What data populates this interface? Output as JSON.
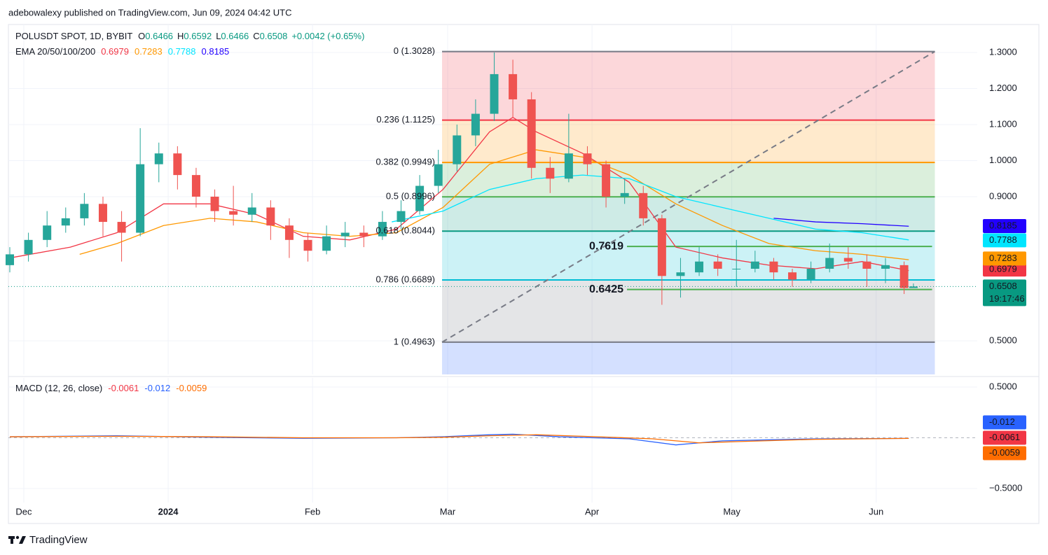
{
  "chart_data": {
    "type": "candlestick",
    "attribution": "adebowalexy published on TradingView.com, Jun 09, 2024 04:42 UTC",
    "symbol": "POLUSDT SPOT, 1D, BYBIT",
    "ohlc_letters": [
      "O",
      "H",
      "L",
      "C"
    ],
    "change": "+0.0042 (+0.65%)",
    "up_color": "#26a69a",
    "down_color": "#ef5350",
    "xlim": [
      -3.3,
      204.7
    ],
    "xticks": [
      {
        "value": 0,
        "label": "Dec"
      },
      {
        "value": 31,
        "label": "2024"
      },
      {
        "value": 62,
        "label": "Feb"
      },
      {
        "value": 91,
        "label": "Mar"
      },
      {
        "value": 122,
        "label": "Apr"
      },
      {
        "value": 152,
        "label": "May"
      },
      {
        "value": 183,
        "label": "Jun"
      }
    ],
    "ylim": [
      0.4068,
      1.3777
    ],
    "yticks": [
      {
        "value": 0.5,
        "label": "0.5000"
      },
      {
        "value": 0.9,
        "label": "0.9000"
      },
      {
        "value": 1.0,
        "label": "1.0000"
      },
      {
        "value": 1.1,
        "label": "1.1000"
      },
      {
        "value": 1.2,
        "label": "1.2000"
      },
      {
        "value": 1.3,
        "label": "1.3000"
      }
    ],
    "grid": true,
    "candles": {
      "x": [
        -3,
        1,
        5,
        9,
        13,
        17,
        21,
        25,
        29,
        33,
        37,
        41,
        45,
        49,
        53,
        57,
        61,
        65,
        69,
        73,
        77,
        81,
        85,
        89,
        93,
        97,
        101,
        105,
        109,
        113,
        117,
        121,
        125,
        129,
        133,
        137,
        141,
        145,
        149,
        153,
        157,
        161,
        165,
        169,
        173,
        177,
        181,
        185,
        189,
        191
      ],
      "open": [
        0.71,
        0.74,
        0.78,
        0.82,
        0.84,
        0.88,
        0.83,
        0.8,
        0.99,
        1.02,
        0.96,
        0.9,
        0.86,
        0.85,
        0.87,
        0.82,
        0.78,
        0.75,
        0.79,
        0.8,
        0.79,
        0.83,
        0.86,
        0.93,
        0.99,
        1.07,
        1.13,
        1.24,
        1.17,
        0.98,
        0.95,
        1.02,
        0.99,
        0.9,
        0.91,
        0.84,
        0.68,
        0.69,
        0.72,
        0.7,
        0.7,
        0.72,
        0.69,
        0.67,
        0.7,
        0.73,
        0.72,
        0.7,
        0.71,
        0.6466
      ],
      "high": [
        0.76,
        0.8,
        0.86,
        0.87,
        0.91,
        0.9,
        0.86,
        1.09,
        1.05,
        1.04,
        0.98,
        0.92,
        0.93,
        0.91,
        0.89,
        0.84,
        0.8,
        0.82,
        0.83,
        0.82,
        0.86,
        0.89,
        0.96,
        1.03,
        1.1,
        1.17,
        1.3,
        1.28,
        1.19,
        1.01,
        1.13,
        1.04,
        1.0,
        0.95,
        0.93,
        0.85,
        0.73,
        0.76,
        0.74,
        0.78,
        0.75,
        0.73,
        0.7,
        0.72,
        0.77,
        0.76,
        0.74,
        0.73,
        0.72,
        0.6592
      ],
      "low": [
        0.69,
        0.72,
        0.76,
        0.8,
        0.82,
        0.79,
        0.72,
        0.79,
        0.94,
        0.92,
        0.87,
        0.83,
        0.82,
        0.83,
        0.78,
        0.73,
        0.72,
        0.74,
        0.76,
        0.76,
        0.78,
        0.81,
        0.85,
        0.91,
        0.97,
        1.04,
        1.11,
        1.12,
        0.95,
        0.91,
        0.94,
        0.96,
        0.87,
        0.88,
        0.82,
        0.6,
        0.62,
        0.68,
        0.68,
        0.65,
        0.69,
        0.67,
        0.65,
        0.66,
        0.69,
        0.7,
        0.65,
        0.66,
        0.63,
        0.6466
      ],
      "close": [
        0.74,
        0.78,
        0.82,
        0.84,
        0.88,
        0.83,
        0.8,
        0.99,
        1.02,
        0.96,
        0.9,
        0.86,
        0.85,
        0.87,
        0.82,
        0.78,
        0.75,
        0.79,
        0.8,
        0.79,
        0.83,
        0.86,
        0.93,
        0.99,
        1.07,
        1.13,
        1.24,
        1.17,
        0.98,
        0.95,
        1.02,
        0.99,
        0.9,
        0.91,
        0.84,
        0.68,
        0.69,
        0.72,
        0.7,
        0.7,
        0.72,
        0.69,
        0.67,
        0.7,
        0.73,
        0.72,
        0.7,
        0.71,
        0.6466,
        0.6508
      ]
    },
    "countdown": "19:17:46",
    "last_color": "#089981",
    "ema_legend": {
      "label": "EMA 20/50/100/200",
      "values": [
        0.6979,
        0.7283,
        0.7788,
        0.8185
      ],
      "colors": [
        "#f23645",
        "#ff9800",
        "#00e5ff",
        "#2200ff"
      ]
    },
    "ema_series": [
      {
        "color": "#f23645",
        "x": [
          -3,
          10,
          20,
          30,
          40,
          50,
          60,
          70,
          80,
          90,
          100,
          105,
          110,
          120,
          130,
          140,
          150,
          160,
          170,
          180,
          190
        ],
        "values": [
          0.73,
          0.76,
          0.8,
          0.88,
          0.88,
          0.85,
          0.79,
          0.78,
          0.81,
          0.92,
          1.08,
          1.12,
          1.08,
          1.02,
          0.94,
          0.76,
          0.73,
          0.71,
          0.7,
          0.72,
          0.695
        ]
      },
      {
        "color": "#ff9800",
        "x": [
          12,
          20,
          30,
          40,
          50,
          60,
          70,
          80,
          90,
          100,
          110,
          120,
          130,
          140,
          150,
          160,
          170,
          180,
          190
        ],
        "values": [
          0.74,
          0.77,
          0.82,
          0.84,
          0.83,
          0.8,
          0.79,
          0.8,
          0.87,
          0.99,
          1.03,
          1.01,
          0.96,
          0.88,
          0.82,
          0.77,
          0.75,
          0.74,
          0.725
        ]
      },
      {
        "color": "#00e5ff",
        "x": [
          79,
          90,
          100,
          110,
          120,
          130,
          140,
          150,
          160,
          170,
          180,
          190
        ],
        "values": [
          0.83,
          0.86,
          0.92,
          0.95,
          0.96,
          0.95,
          0.9,
          0.87,
          0.84,
          0.81,
          0.8,
          0.78
        ]
      },
      {
        "color": "#2200ff",
        "x": [
          161,
          170,
          180,
          190
        ],
        "values": [
          0.84,
          0.83,
          0.825,
          0.818
        ]
      }
    ],
    "fib_x": [
      89.8,
      195.6
    ],
    "fib_extension_color": "#2962ff",
    "fib": [
      {
        "value": 1.3028,
        "label": "0 (1.3028)",
        "color": "#787b86"
      },
      {
        "value": 1.1125,
        "label": "0.236 (1.1125)",
        "color": "#f23645"
      },
      {
        "value": 0.9949,
        "label": "0.382 (0.9949)",
        "color": "#ff9800"
      },
      {
        "value": 0.8996,
        "label": "0.5 (0.8996)",
        "color": "#4caf50"
      },
      {
        "value": 0.8044,
        "label": "0.618 (0.8044)",
        "color": "#089981"
      },
      {
        "value": 0.6689,
        "label": "0.786 (0.6689)",
        "color": "#00bcd4"
      },
      {
        "value": 0.4963,
        "label": "1 (0.4963)",
        "color": "#787b86"
      }
    ],
    "levels": [
      0.7619,
      0.6425
    ],
    "levels_x": [
      129.5,
      195
    ],
    "levels_color": "#4caf50",
    "macd": {
      "label": "MACD (12, 26, close)",
      "legend_values": [
        -0.0061,
        -0.012,
        -0.0059
      ],
      "legend_colors": [
        "#f23645",
        "#2962ff",
        "#ff6d00"
      ],
      "ylim": [
        -0.638,
        0.59
      ],
      "yticks": [
        {
          "value": 0.5,
          "label": "0.5000"
        },
        {
          "value": -0.5,
          "label": "−0.5000"
        }
      ],
      "series": [
        {
          "color": "#2962ff",
          "x": [
            -3,
            20,
            40,
            60,
            80,
            90,
            100,
            105,
            115,
            130,
            140,
            150,
            160,
            170,
            190
          ],
          "values": [
            0.01,
            0.02,
            0.005,
            -0.005,
            0.0,
            0.01,
            0.03,
            0.035,
            0.01,
            -0.01,
            -0.07,
            -0.03,
            -0.02,
            -0.01,
            -0.006
          ]
        },
        {
          "color": "#ff6d00",
          "x": [
            -3,
            20,
            40,
            60,
            80,
            90,
            100,
            110,
            120,
            135,
            145,
            155,
            170,
            190
          ],
          "values": [
            0.01,
            0.015,
            0.01,
            0.0,
            0.0,
            0.005,
            0.02,
            0.03,
            0.015,
            -0.01,
            -0.05,
            -0.035,
            -0.015,
            -0.0059
          ]
        }
      ]
    },
    "brand": "TradingView"
  }
}
